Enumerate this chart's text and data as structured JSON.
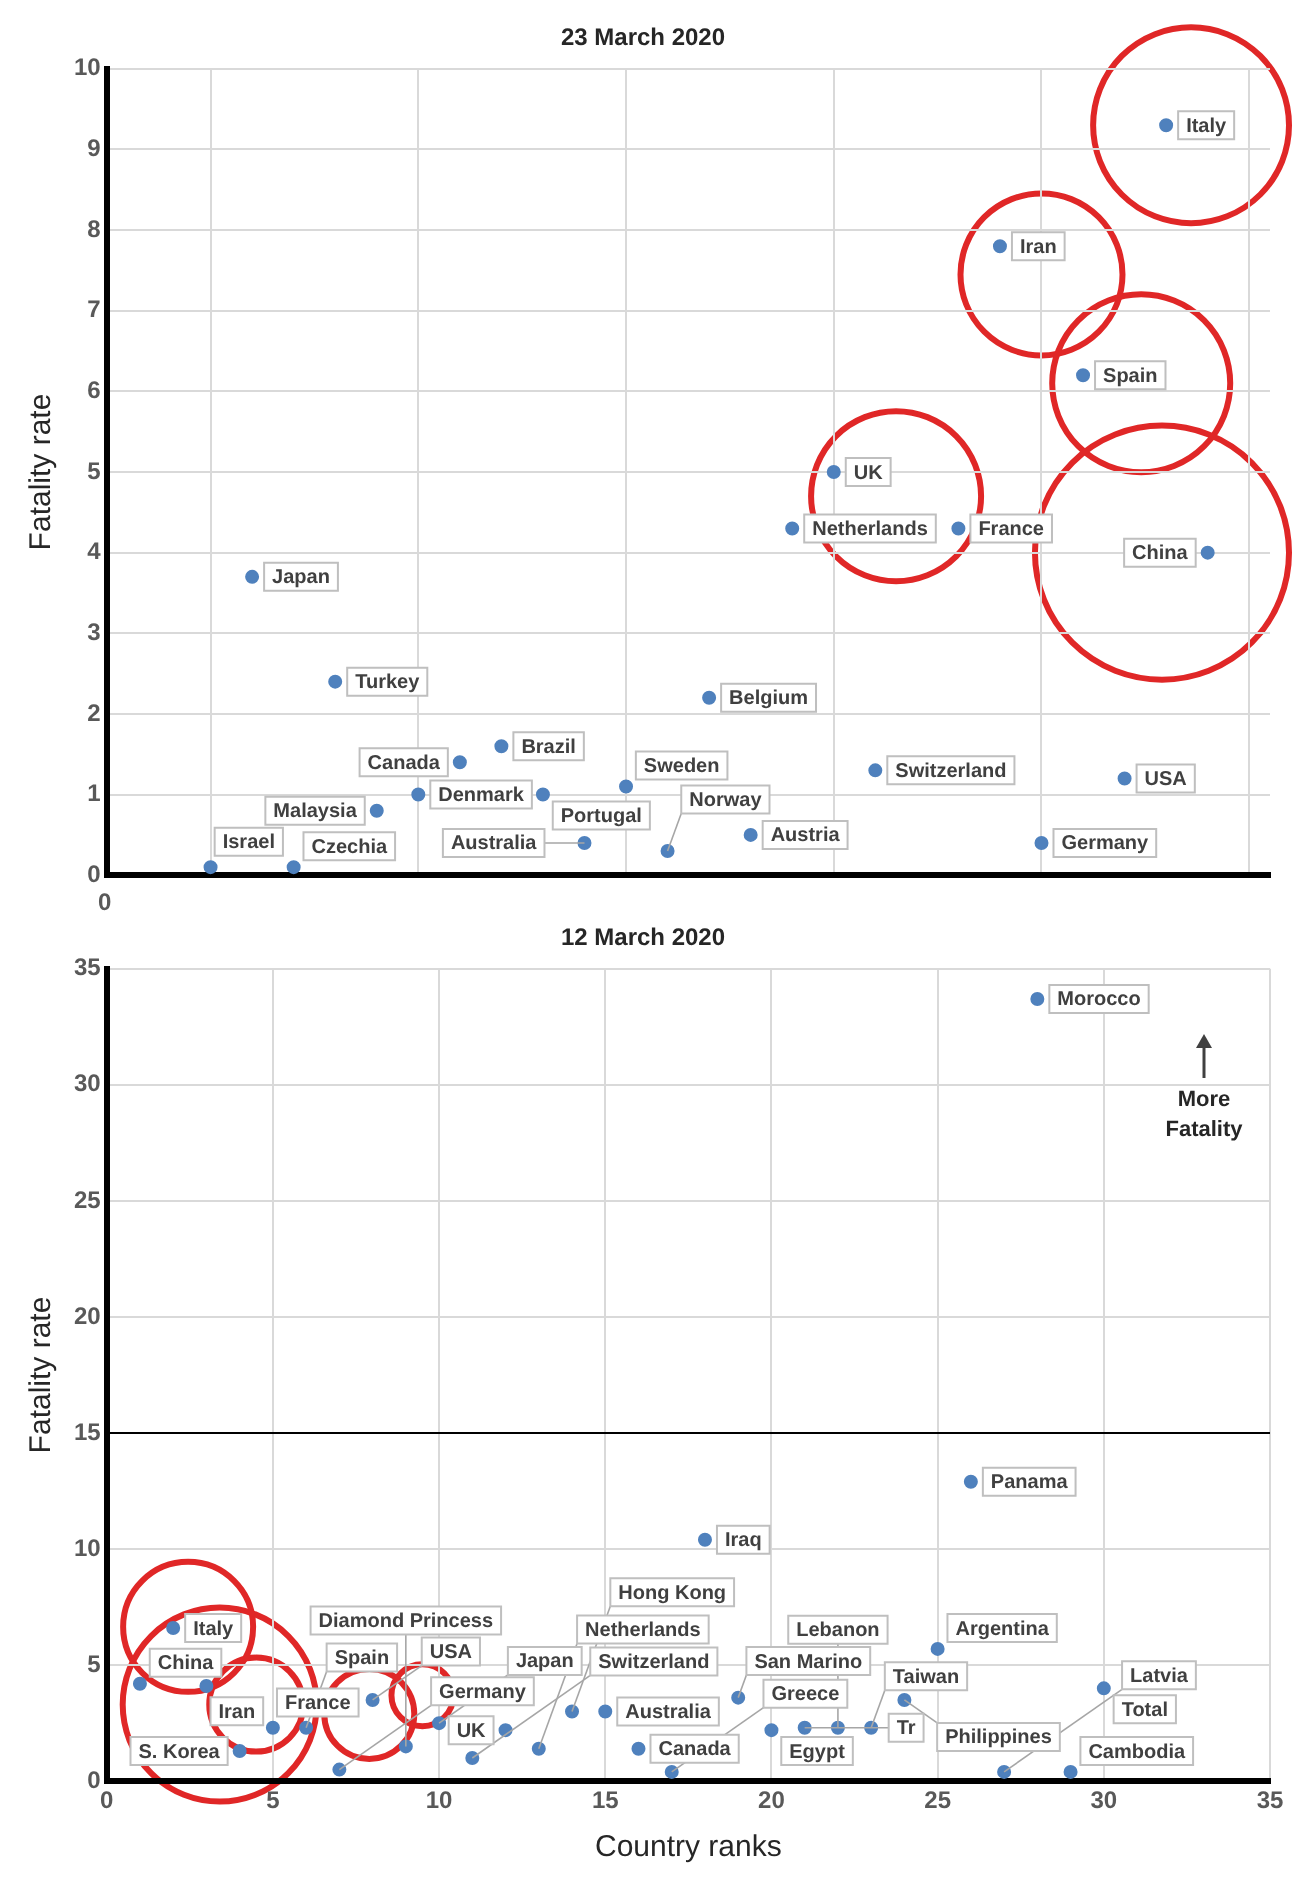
{
  "chart_data": [
    {
      "type": "scatter",
      "title": "23 March 2020",
      "ylabel": "Fatality rate",
      "categories": [
        null,
        null,
        null,
        null,
        null,
        null,
        null,
        null,
        null,
        null,
        null,
        null,
        null,
        null,
        null,
        null,
        null,
        null,
        null,
        null,
        null,
        null,
        null,
        null,
        null,
        null,
        null,
        null
      ],
      "ylim": [
        0,
        10
      ],
      "yticks": [
        0,
        1,
        2,
        3,
        4,
        5,
        6,
        7,
        8,
        9,
        10
      ],
      "grid": true,
      "legend": false,
      "marker": "circle",
      "series": [
        {
          "color": "#4f81bd",
          "values": [
            null,
            null,
            0.1,
            3.7,
            0.1,
            2.4,
            0.8,
            1.0,
            1.4,
            1.6,
            1.0,
            0.4,
            1.1,
            0.3,
            2.2,
            0.5,
            4.3,
            5.0,
            1.3,
            null,
            4.3,
            7.8,
            0.4,
            6.2,
            1.2,
            9.3,
            4.0,
            null
          ]
        }
      ],
      "annotations": [
        "0",
        "Israel",
        "Japan",
        "Czechia",
        "Turkey",
        "Malaysia",
        "Denmark",
        "Canada",
        "Brazil",
        "Portugal",
        "Australia",
        "Sweden",
        "Norway",
        "Belgium",
        "Austria",
        "Netherlands",
        "UK",
        "Switzerland",
        "France",
        "Iran",
        "Germany",
        "Spain",
        "USA",
        "Italy",
        "China"
      ]
    },
    {
      "type": "scatter",
      "title": "12 March 2020",
      "xlabel": "Country ranks",
      "ylabel": "Fatality rate",
      "xlim": [
        0,
        35
      ],
      "xticks": [
        0,
        5,
        10,
        15,
        20,
        25,
        30,
        35
      ],
      "ylim": [
        0,
        35
      ],
      "yticks": [
        0,
        5,
        10,
        15,
        20,
        25,
        30,
        35
      ],
      "grid": true,
      "legend": false,
      "marker": "circle",
      "ref_lines": [
        {
          "axis": "y",
          "value": 15,
          "color": "#000000"
        }
      ],
      "series": [
        {
          "color": "#4f81bd",
          "x": [
            1,
            2,
            3,
            4,
            5,
            6,
            7,
            8,
            9,
            10,
            11,
            12,
            13,
            14,
            15,
            16,
            17,
            18,
            19,
            20,
            21,
            22,
            23,
            24,
            25,
            26,
            27,
            28,
            29,
            30
          ],
          "values": [
            4.2,
            6.6,
            4.1,
            1.3,
            2.3,
            2.3,
            0.5,
            3.5,
            1.5,
            2.5,
            1.0,
            2.2,
            1.4,
            3.0,
            3.0,
            1.4,
            0.4,
            10.4,
            3.6,
            2.2,
            2.3,
            2.3,
            2.3,
            3.5,
            5.7,
            12.9,
            0.4,
            33.7,
            0.4,
            4.0
          ]
        }
      ],
      "annotations": [
        {
          "text": "China",
          "x": 1,
          "y": 4.2
        },
        {
          "text": "Italy",
          "x": 2,
          "y": 6.6
        },
        {
          "text": "Iran",
          "x": 3,
          "y": 4.1
        },
        {
          "text": "S. Korea",
          "x": 4,
          "y": 1.3
        },
        {
          "text": "France",
          "x": 5,
          "y": 2.3
        },
        {
          "text": "Spain",
          "x": 6,
          "y": 2.3
        },
        {
          "text": "Germany",
          "x": 7,
          "y": 0.5
        },
        {
          "text": "USA",
          "x": 8,
          "y": 3.5
        },
        {
          "text": "Diamond Princess",
          "x": 9,
          "y": 1.5
        },
        {
          "text": "Japan",
          "x": 10,
          "y": 2.5
        },
        {
          "text": "Switzerland",
          "x": 11,
          "y": 1.0
        },
        {
          "text": "UK",
          "x": 12,
          "y": 2.2
        },
        {
          "text": "Netherlands",
          "x": 13,
          "y": 1.4
        },
        {
          "text": "Hong Kong",
          "x": 14,
          "y": 3.0
        },
        {
          "text": "Australia",
          "x": 15,
          "y": 3.0
        },
        {
          "text": "Canada",
          "x": 16,
          "y": 1.4
        },
        {
          "text": "Greece",
          "x": 17,
          "y": 0.4
        },
        {
          "text": "Iraq",
          "x": 18,
          "y": 10.4
        },
        {
          "text": "San Marino",
          "x": 19,
          "y": 3.6
        },
        {
          "text": "Egypt",
          "x": 20,
          "y": 2.2
        },
        {
          "text": "Tr",
          "x": 21,
          "y": 2.3
        },
        {
          "text": "Lebanon",
          "x": 22,
          "y": 2.3
        },
        {
          "text": "Taiwan",
          "x": 23,
          "y": 2.3
        },
        {
          "text": "Philippines",
          "x": 24,
          "y": 3.5
        },
        {
          "text": "Argentina",
          "x": 25,
          "y": 5.7
        },
        {
          "text": "Panama",
          "x": 26,
          "y": 12.9
        },
        {
          "text": "Latvia",
          "x": 27,
          "y": 0.4
        },
        {
          "text": "Morocco",
          "x": 28,
          "y": 33.7
        },
        {
          "text": "Cambodia",
          "x": 29,
          "y": 0.4
        },
        {
          "text": "Total",
          "x": 30,
          "y": 4.0
        },
        "More Fatality"
      ]
    }
  ]
}
